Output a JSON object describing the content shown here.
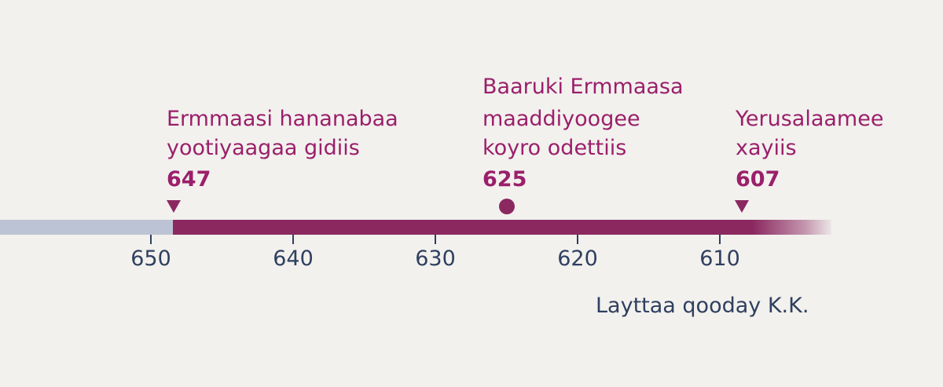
{
  "timeline": {
    "axis_caption": "Layttaa qooday K.K.",
    "ticks": [
      "650",
      "640",
      "630",
      "620",
      "610"
    ],
    "events": [
      {
        "line1": "Ermmaasi hananabaa",
        "line2": "yootiyaagaa gidiis",
        "year": "647",
        "marker": "triangle"
      },
      {
        "line1": "Baaruki Ermmaasa",
        "line2": "maaddiyoogee",
        "line3": "koyro odettiis",
        "year": "625",
        "marker": "dot"
      },
      {
        "line1": "Yerusalaamee",
        "line2": "xayiis",
        "year": "607",
        "marker": "triangle"
      }
    ],
    "colors": {
      "accent": "#8b2860",
      "text_accent": "#9b1f6a",
      "axis": "#2f3f5f",
      "past_bar": "#bcc3d4"
    }
  }
}
